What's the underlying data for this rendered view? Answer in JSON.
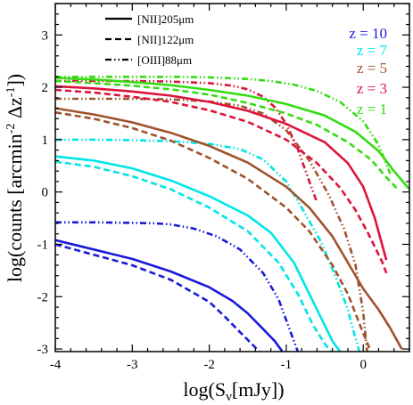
{
  "chart_data": {
    "type": "line",
    "xlabel": "log(Sν[mJy])",
    "xlabel_main": "log(S",
    "xlabel_sub": "ν",
    "xlabel_tail": "[mJy])",
    "ylabel": "log(counts [arcmin⁻² Δz⁻¹])",
    "ylabel_main": "log(counts [arcmin",
    "ylabel_sup1": "-2",
    "ylabel_mid": " Δz",
    "ylabel_sup2": "-1",
    "ylabel_tail": "])",
    "xlim": [
      -4,
      0.6
    ],
    "ylim": [
      -3.05,
      3.6
    ],
    "xticks": [
      -4,
      -3,
      -2,
      -1,
      0
    ],
    "xtick_labels": [
      "-4",
      "-3",
      "-2",
      "-1",
      "0"
    ],
    "yticks": [
      -3,
      -2,
      -1,
      0,
      1,
      2,
      3
    ],
    "ytick_labels": [
      "-3",
      "-2",
      "-1",
      "0",
      "1",
      "2",
      "3"
    ],
    "grid": false,
    "legend_placement": "top-left",
    "line_legend": [
      {
        "label": "[NII]205μm",
        "dash": "solid"
      },
      {
        "label": "[NII]122μm",
        "dash": "dashed"
      },
      {
        "label": "[OIII]88μm",
        "dash": "dashdotdot"
      }
    ],
    "redshift_legend": [
      {
        "label": "z = 10",
        "color": "#1a1adb"
      },
      {
        "label": "z = 7",
        "color": "#00e5e5"
      },
      {
        "label": "z = 5",
        "color": "#a0522d"
      },
      {
        "label": "z = 3",
        "color": "#dc143c"
      },
      {
        "label": "z = 1",
        "color": "#33dd11"
      }
    ],
    "series": [
      {
        "z": "10",
        "line": "[NII]205μm",
        "color": "#1a1adb",
        "dash": "solid",
        "x": [
          -4,
          -3.5,
          -3,
          -2.5,
          -2,
          -1.7,
          -1.5,
          -1.3,
          -1.15,
          -1.05
        ],
        "y": [
          -0.92,
          -1.1,
          -1.28,
          -1.52,
          -1.82,
          -2.08,
          -2.32,
          -2.62,
          -2.85,
          -3.05
        ]
      },
      {
        "z": "10",
        "line": "[NII]122μm",
        "color": "#1a1adb",
        "dash": "dashed",
        "x": [
          -4,
          -3.5,
          -3,
          -2.5,
          -2,
          -1.8,
          -1.6,
          -1.45,
          -1.35
        ],
        "y": [
          -1.0,
          -1.2,
          -1.4,
          -1.68,
          -2.1,
          -2.38,
          -2.68,
          -2.9,
          -3.05
        ]
      },
      {
        "z": "10",
        "line": "[OIII]88μm",
        "color": "#1a1adb",
        "dash": "dashdotdot",
        "x": [
          -4,
          -3.5,
          -3,
          -2.7,
          -2.5,
          -2.2,
          -1.9,
          -1.6,
          -1.3,
          -1.1,
          -1.0,
          -0.9,
          -0.85
        ],
        "y": [
          -0.58,
          -0.58,
          -0.59,
          -0.6,
          -0.62,
          -0.7,
          -0.85,
          -1.1,
          -1.55,
          -2.05,
          -2.45,
          -2.85,
          -3.05
        ]
      },
      {
        "z": "7",
        "line": "[NII]205μm",
        "color": "#00e5e5",
        "dash": "solid",
        "x": [
          -4,
          -3.5,
          -3,
          -2.5,
          -2,
          -1.5,
          -1.2,
          -0.9,
          -0.7,
          -0.5,
          -0.4,
          -0.3
        ],
        "y": [
          0.68,
          0.6,
          0.45,
          0.22,
          -0.08,
          -0.45,
          -0.78,
          -1.35,
          -1.95,
          -2.55,
          -2.85,
          -3.05
        ]
      },
      {
        "z": "7",
        "line": "[NII]122μm",
        "color": "#00e5e5",
        "dash": "dashed",
        "x": [
          -4,
          -3.5,
          -3,
          -2.5,
          -2,
          -1.5,
          -1.1,
          -0.85,
          -0.65,
          -0.5,
          -0.42
        ],
        "y": [
          0.58,
          0.48,
          0.3,
          0.05,
          -0.3,
          -0.75,
          -1.35,
          -1.95,
          -2.55,
          -2.9,
          -3.05
        ]
      },
      {
        "z": "7",
        "line": "[OIII]88μm",
        "color": "#00e5e5",
        "dash": "dashdotdot",
        "x": [
          -4,
          -3.5,
          -3,
          -2.5,
          -2,
          -1.6,
          -1.3,
          -1.0,
          -0.8,
          -0.55,
          -0.35,
          -0.2,
          -0.12,
          -0.05
        ],
        "y": [
          1.0,
          1.0,
          0.99,
          0.97,
          0.92,
          0.82,
          0.62,
          0.2,
          -0.3,
          -0.95,
          -1.65,
          -2.25,
          -2.7,
          -3.05
        ]
      },
      {
        "z": "5",
        "line": "[NII]205μm",
        "color": "#a0522d",
        "dash": "solid",
        "x": [
          -4,
          -3.5,
          -3,
          -2.5,
          -2,
          -1.5,
          -1.0,
          -0.7,
          -0.4,
          -0.2,
          0.0,
          0.2,
          0.35,
          0.5
        ],
        "y": [
          1.6,
          1.48,
          1.33,
          1.13,
          0.88,
          0.56,
          0.1,
          -0.3,
          -0.85,
          -1.35,
          -1.85,
          -2.25,
          -2.6,
          -3.0
        ]
      },
      {
        "z": "5",
        "line": "[NII]122μm",
        "color": "#a0522d",
        "dash": "dashed",
        "x": [
          -4,
          -3.5,
          -3,
          -2.5,
          -2,
          -1.5,
          -1.0,
          -0.7,
          -0.4,
          -0.2,
          0.0,
          0.1
        ],
        "y": [
          1.52,
          1.4,
          1.22,
          0.98,
          0.65,
          0.25,
          -0.3,
          -0.75,
          -1.4,
          -1.95,
          -2.7,
          -3.05
        ]
      },
      {
        "z": "5",
        "line": "[OIII]88μm",
        "color": "#a0522d",
        "dash": "dashdotdot",
        "x": [
          -4,
          -3.5,
          -3,
          -2.5,
          -2,
          -1.6,
          -1.3,
          -1.0,
          -0.7,
          -0.45,
          -0.25,
          -0.1,
          0.0,
          0.05
        ],
        "y": [
          1.78,
          1.78,
          1.78,
          1.77,
          1.73,
          1.65,
          1.5,
          1.18,
          0.6,
          -0.05,
          -0.7,
          -1.4,
          -2.3,
          -3.05
        ]
      },
      {
        "z": "3",
        "line": "[NII]205μm",
        "color": "#dc143c",
        "dash": "solid",
        "x": [
          -4,
          -3.5,
          -3,
          -2.5,
          -2,
          -1.5,
          -1.0,
          -0.5,
          -0.2,
          0.0,
          0.15,
          0.3
        ],
        "y": [
          2.02,
          1.98,
          1.92,
          1.84,
          1.72,
          1.55,
          1.3,
          0.95,
          0.55,
          0.1,
          -0.5,
          -1.3
        ]
      },
      {
        "z": "3",
        "line": "[NII]122μm",
        "color": "#dc143c",
        "dash": "dashed",
        "x": [
          -4,
          -3.5,
          -3,
          -2.5,
          -2,
          -1.5,
          -1.0,
          -0.6,
          -0.3,
          -0.1,
          0.05,
          0.15,
          0.25,
          0.3
        ],
        "y": [
          1.95,
          1.9,
          1.82,
          1.72,
          1.56,
          1.34,
          1.0,
          0.55,
          0.08,
          -0.35,
          -0.75,
          -1.05,
          -1.35,
          -1.55
        ]
      },
      {
        "z": "3",
        "line": "[OIII]88μm",
        "color": "#dc143c",
        "dash": "dashdotdot",
        "x": [
          -4,
          -3.5,
          -3,
          -2.5,
          -2,
          -1.7,
          -1.5,
          -1.3,
          -1.15,
          -1.0,
          -0.85,
          -0.7,
          -0.6
        ],
        "y": [
          2.12,
          2.12,
          2.12,
          2.11,
          2.08,
          2.03,
          1.96,
          1.82,
          1.62,
          1.3,
          0.82,
          0.2,
          -0.2
        ]
      },
      {
        "z": "1",
        "line": "[NII]205μm",
        "color": "#33dd11",
        "dash": "solid",
        "x": [
          -4,
          -3.5,
          -3,
          -2.5,
          -2,
          -1.5,
          -1.0,
          -0.5,
          -0.1,
          0.2,
          0.4,
          0.6
        ],
        "y": [
          2.18,
          2.15,
          2.1,
          2.04,
          1.95,
          1.84,
          1.68,
          1.46,
          1.15,
          0.78,
          0.4,
          0.05
        ]
      },
      {
        "z": "1",
        "line": "[NII]122μm",
        "color": "#33dd11",
        "dash": "dashed",
        "x": [
          -4,
          -3.5,
          -3,
          -2.5,
          -2,
          -1.5,
          -1.0,
          -0.6,
          -0.2,
          0.1,
          0.3,
          0.45
        ],
        "y": [
          2.12,
          2.08,
          2.03,
          1.96,
          1.86,
          1.7,
          1.5,
          1.28,
          0.95,
          0.62,
          0.28,
          0.05
        ]
      },
      {
        "z": "1",
        "line": "[OIII]88μm",
        "color": "#33dd11",
        "dash": "dashdotdot",
        "x": [
          -4,
          -3.5,
          -3,
          -2.5,
          -2,
          -1.5,
          -1.2,
          -0.9,
          -0.6,
          -0.3,
          0.0,
          0.2,
          0.35
        ],
        "y": [
          2.2,
          2.2,
          2.2,
          2.2,
          2.19,
          2.16,
          2.12,
          2.05,
          1.93,
          1.72,
          1.35,
          0.9,
          0.35
        ]
      }
    ]
  }
}
